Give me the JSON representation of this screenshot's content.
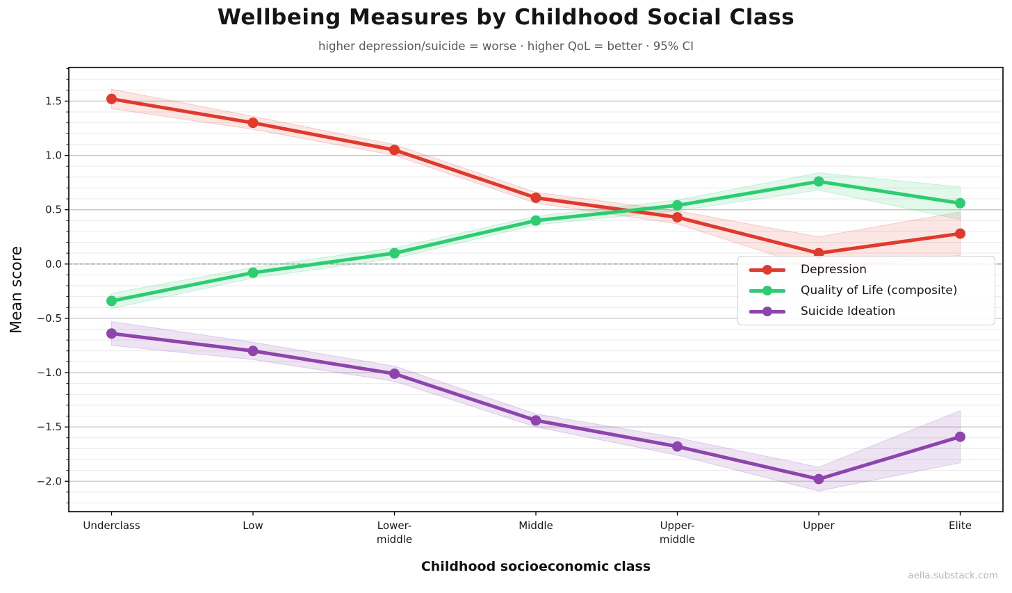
{
  "page": {
    "watermark": "aella.substack.com"
  },
  "chart_data": {
    "type": "line",
    "title": "Wellbeing Measures by Childhood Social Class",
    "subtitle": "higher depression/suicide = worse · higher QoL = better · 95% CI",
    "xlabel": "Childhood socioeconomic class",
    "ylabel": "Mean score",
    "categories": [
      "Underclass",
      "Low",
      "Lower-middle",
      "Middle",
      "Upper-middle",
      "Upper",
      "Elite"
    ],
    "category_tick_lines": [
      [
        "Underclass"
      ],
      [
        "Low"
      ],
      [
        "Lower-",
        "middle"
      ],
      [
        "Middle"
      ],
      [
        "Upper-",
        "middle"
      ],
      [
        "Upper"
      ],
      [
        "Elite"
      ]
    ],
    "y_ticks": {
      "values": [
        1.5,
        1.0,
        0.5,
        0.0,
        -0.5,
        -1.0,
        -1.5,
        -2.0
      ],
      "labels": [
        "1.5",
        "1.0",
        "0.5",
        "0.0",
        "−0.5",
        "−1.0",
        "−1.5",
        "−2.0"
      ]
    },
    "ylim": [
      -2.28,
      1.81
    ],
    "grid": {
      "minor_step": 0.1,
      "major_step": 0.5,
      "zero_line": "dashed"
    },
    "legend_position": "center-right",
    "series": [
      {
        "name": "Depression",
        "color": "#e03a2c",
        "values": [
          1.52,
          1.3,
          1.05,
          0.61,
          0.43,
          0.1,
          0.28
        ],
        "ci_half": [
          0.09,
          0.06,
          0.05,
          0.05,
          0.06,
          0.15,
          0.2
        ]
      },
      {
        "name": "Quality of Life (composite)",
        "color": "#2ecc71",
        "values": [
          -0.34,
          -0.08,
          0.1,
          0.4,
          0.54,
          0.76,
          0.56
        ],
        "ci_half": [
          0.07,
          0.05,
          0.05,
          0.04,
          0.05,
          0.08,
          0.15
        ]
      },
      {
        "name": "Suicide Ideation",
        "color": "#8e44ad",
        "values": [
          -0.64,
          -0.8,
          -1.01,
          -1.44,
          -1.68,
          -1.98,
          -1.59
        ],
        "ci_half": [
          0.11,
          0.08,
          0.07,
          0.06,
          0.08,
          0.11,
          0.24
        ]
      }
    ]
  }
}
